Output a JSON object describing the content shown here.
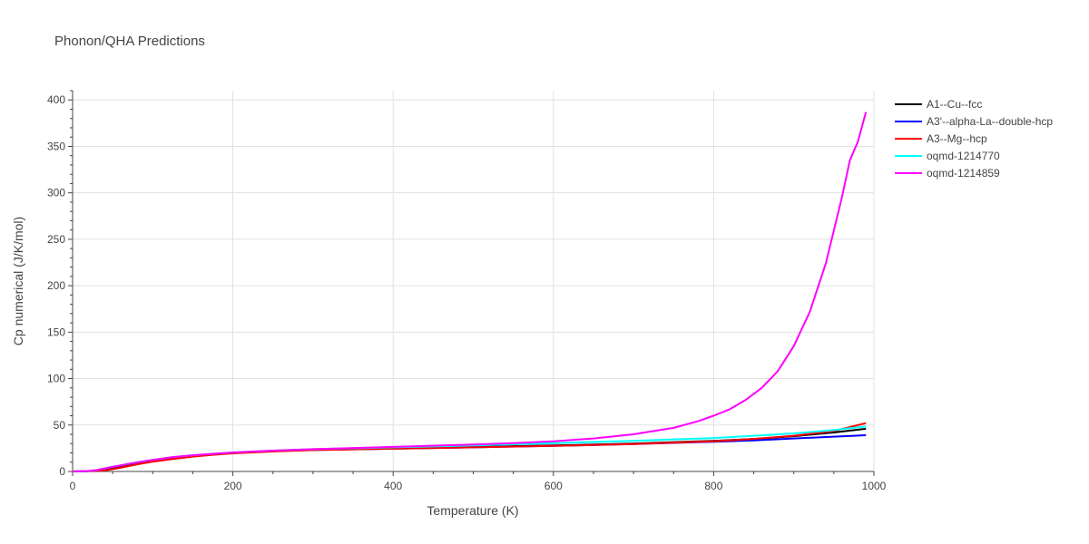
{
  "chart_data": {
    "type": "line",
    "title": "Phonon/QHA Predictions",
    "xlabel": "Temperature (K)",
    "ylabel": "Cp numerical (J/K/mol)",
    "xlim": [
      0,
      1000
    ],
    "ylim": [
      0,
      410
    ],
    "xticks": [
      0,
      200,
      400,
      600,
      800,
      1000
    ],
    "yticks": [
      0,
      50,
      100,
      150,
      200,
      250,
      300,
      350,
      400
    ],
    "grid": true,
    "legend_position": "top-right",
    "series": [
      {
        "name": "A1--Cu--fcc",
        "color": "#000000",
        "x": [
          0,
          30,
          50,
          75,
          100,
          125,
          150,
          175,
          200,
          250,
          300,
          400,
          500,
          600,
          700,
          800,
          850,
          900,
          950,
          990
        ],
        "y": [
          0,
          0.5,
          3,
          7,
          11,
          14,
          16.5,
          18.5,
          20,
          22,
          23.5,
          25,
          26.5,
          28,
          30,
          33,
          35,
          38,
          42,
          46
        ]
      },
      {
        "name": "A3'--alpha-La--double-hcp",
        "color": "#0000ff",
        "x": [
          0,
          20,
          30,
          50,
          75,
          100,
          125,
          150,
          175,
          200,
          250,
          300,
          400,
          500,
          600,
          700,
          800,
          850,
          900,
          950,
          990
        ],
        "y": [
          0,
          0.5,
          1.5,
          5,
          9,
          12.5,
          15,
          17,
          18.5,
          20,
          22,
          23,
          24.5,
          26,
          27.5,
          29.5,
          32,
          33.5,
          35.5,
          37.5,
          39
        ]
      },
      {
        "name": "A3--Mg--hcp",
        "color": "#ff0000",
        "x": [
          0,
          40,
          60,
          80,
          100,
          125,
          150,
          175,
          200,
          250,
          300,
          400,
          500,
          600,
          700,
          800,
          850,
          900,
          950,
          990
        ],
        "y": [
          0,
          1,
          4,
          7.5,
          10.5,
          13.5,
          16,
          18,
          19.5,
          21.5,
          23,
          24.5,
          26,
          27.5,
          29.5,
          32.5,
          35,
          38.5,
          43.5,
          52
        ]
      },
      {
        "name": "oqmd-1214770",
        "color": "#00ffff",
        "x": [
          0,
          20,
          30,
          50,
          75,
          100,
          125,
          150,
          175,
          200,
          250,
          300,
          400,
          500,
          600,
          700,
          800,
          850,
          900,
          950,
          990
        ],
        "y": [
          0,
          0.5,
          1.5,
          5,
          9,
          12.5,
          15.5,
          17.5,
          19,
          20.5,
          22.5,
          24,
          26,
          28,
          30.5,
          33,
          36,
          38.5,
          41,
          44.5,
          48.5
        ]
      },
      {
        "name": "oqmd-1214859",
        "color": "#ff00ff",
        "x": [
          0,
          20,
          30,
          50,
          75,
          100,
          125,
          150,
          175,
          200,
          250,
          300,
          400,
          500,
          550,
          600,
          650,
          700,
          750,
          780,
          800,
          820,
          840,
          860,
          880,
          900,
          920,
          940,
          960,
          970,
          980,
          990
        ],
        "y": [
          0,
          0.5,
          1.5,
          5,
          9,
          12.5,
          15.5,
          17.5,
          19,
          20.5,
          22.5,
          24,
          26.5,
          29,
          30.5,
          32.5,
          35.5,
          40,
          47,
          54,
          60,
          67,
          77,
          90,
          108,
          135,
          172,
          224,
          295,
          335,
          355,
          387
        ]
      }
    ]
  }
}
